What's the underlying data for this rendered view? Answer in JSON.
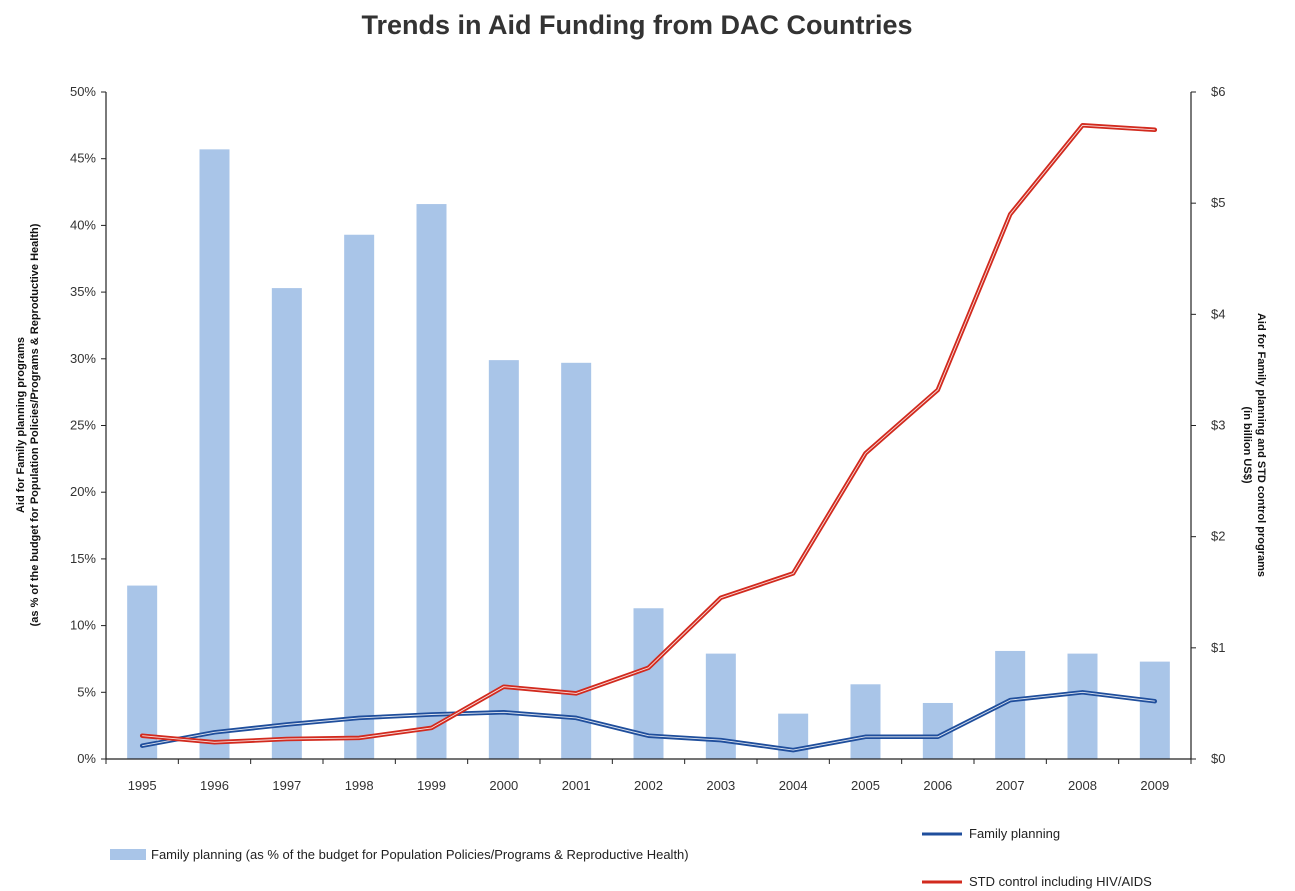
{
  "chart_data": {
    "type": "bar",
    "title": "Trends in  Aid Funding from DAC Countries",
    "categories": [
      "1995",
      "1996",
      "1997",
      "1998",
      "1999",
      "2000",
      "2001",
      "2002",
      "2003",
      "2004",
      "2005",
      "2006",
      "2007",
      "2008",
      "2009"
    ],
    "y_left": {
      "label_line1": "Aid for Family planning programs",
      "label_line2": "(as % of the budget for Population Policies/Programs & Reproductive Health)",
      "ylim": [
        0,
        50
      ],
      "ticks": [
        "0%",
        "5%",
        "10%",
        "15%",
        "20%",
        "25%",
        "30%",
        "35%",
        "40%",
        "45%",
        "50%"
      ]
    },
    "y_right": {
      "label_line1": "Aid for Family planning and STD control programs",
      "label_line2": "(in billion US$)",
      "ylim": [
        0,
        6
      ],
      "ticks": [
        "$0",
        "$1",
        "$2",
        "$3",
        "$4",
        "$5",
        "$6"
      ]
    },
    "series": [
      {
        "name": "Family planning (as % of the budget for Population Policies/Programs & Reproductive Health)",
        "kind": "bar",
        "axis": "left",
        "color": "#a9c5e8",
        "values": [
          13.0,
          45.7,
          35.3,
          39.3,
          41.6,
          29.9,
          29.7,
          11.3,
          7.9,
          3.4,
          5.6,
          4.2,
          8.1,
          7.9,
          7.3
        ]
      },
      {
        "name": "Family planning",
        "kind": "line",
        "axis": "right",
        "color": "#1f4e9c",
        "values": [
          0.12,
          0.24,
          0.31,
          0.37,
          0.4,
          0.42,
          0.37,
          0.21,
          0.17,
          0.08,
          0.2,
          0.2,
          0.53,
          0.6,
          0.52
        ]
      },
      {
        "name": "STD control including HIV/AIDS",
        "kind": "line",
        "axis": "right",
        "color": "#d22a1e",
        "values": [
          0.21,
          0.15,
          0.18,
          0.19,
          0.28,
          0.65,
          0.59,
          0.82,
          1.45,
          1.67,
          2.75,
          3.32,
          4.9,
          5.7,
          5.66
        ]
      }
    ],
    "grid": false
  }
}
